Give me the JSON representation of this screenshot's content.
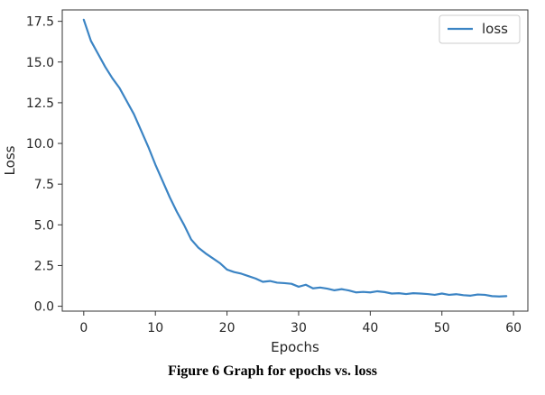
{
  "chart_data": {
    "type": "line",
    "xlabel": "Epochs",
    "ylabel": "Loss",
    "xlim": [
      -3,
      62
    ],
    "ylim": [
      -0.3,
      18.2
    ],
    "xticks": [
      0,
      10,
      20,
      30,
      40,
      50,
      60
    ],
    "yticks": [
      0.0,
      2.5,
      5.0,
      7.5,
      10.0,
      12.5,
      15.0,
      17.5
    ],
    "xtick_labels": [
      "0",
      "10",
      "20",
      "30",
      "40",
      "50",
      "60"
    ],
    "ytick_labels": [
      "0.0",
      "2.5",
      "5.0",
      "7.5",
      "10.0",
      "12.5",
      "15.0",
      "17.5"
    ],
    "grid": false,
    "legend_position": "top-right",
    "series": [
      {
        "name": "loss",
        "color": "#3b84c4",
        "x": [
          0,
          1,
          2,
          3,
          4,
          5,
          6,
          7,
          8,
          9,
          10,
          11,
          12,
          13,
          14,
          15,
          16,
          17,
          18,
          19,
          20,
          21,
          22,
          23,
          24,
          25,
          26,
          27,
          28,
          29,
          30,
          31,
          32,
          33,
          34,
          35,
          36,
          37,
          38,
          39,
          40,
          41,
          42,
          43,
          44,
          45,
          46,
          47,
          48,
          49,
          50,
          51,
          52,
          53,
          54,
          55,
          56,
          57,
          58,
          59
        ],
        "values": [
          17.6,
          16.3,
          15.5,
          14.7,
          14.0,
          13.4,
          12.6,
          11.8,
          10.8,
          9.8,
          8.7,
          7.7,
          6.7,
          5.8,
          5.0,
          4.1,
          3.6,
          3.25,
          2.95,
          2.65,
          2.25,
          2.1,
          2.0,
          1.85,
          1.7,
          1.5,
          1.55,
          1.45,
          1.42,
          1.38,
          1.2,
          1.32,
          1.1,
          1.15,
          1.08,
          0.98,
          1.05,
          0.97,
          0.85,
          0.88,
          0.85,
          0.92,
          0.87,
          0.78,
          0.8,
          0.75,
          0.8,
          0.78,
          0.75,
          0.7,
          0.78,
          0.7,
          0.74,
          0.68,
          0.65,
          0.72,
          0.7,
          0.62,
          0.6,
          0.62
        ]
      }
    ]
  },
  "caption": "Figure 6 Graph for epochs vs. loss"
}
